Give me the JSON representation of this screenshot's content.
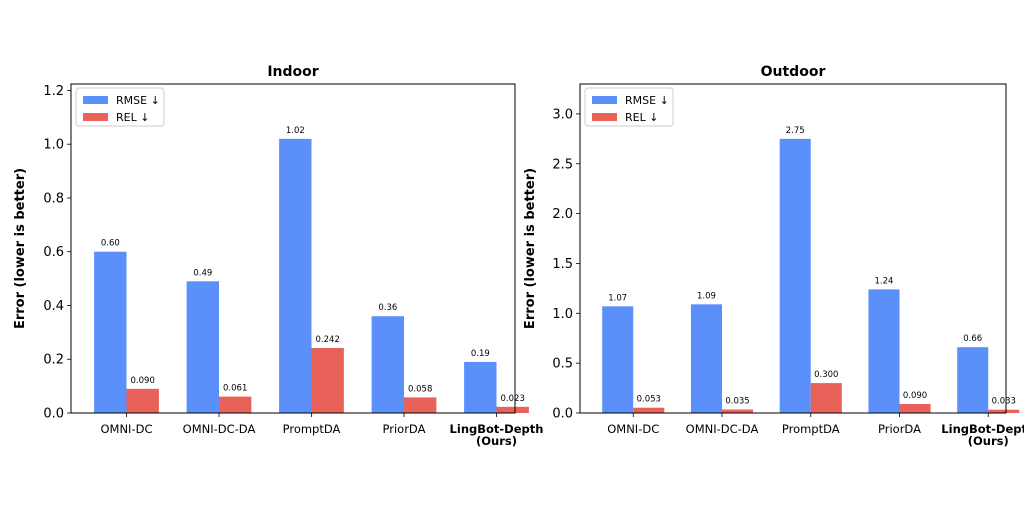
{
  "chart_data": [
    {
      "type": "bar",
      "title": "Indoor",
      "ylabel": "Error (lower is better)",
      "xlabel": "",
      "ylim": [
        0,
        1.224
      ],
      "yticks": [
        "0.0",
        "0.2",
        "0.4",
        "0.6",
        "0.8",
        "1.0",
        "1.2"
      ],
      "ytick_values": [
        0,
        0.2,
        0.4,
        0.6,
        0.8,
        1.0,
        1.2
      ],
      "categories": [
        "OMNI-DC",
        "OMNI-DC-DA",
        "PromptDA",
        "PriorDA",
        "LingBot-Depth\n(Ours)"
      ],
      "bold_categories": [
        false,
        false,
        false,
        false,
        true
      ],
      "legend_position": "upper-left",
      "series": [
        {
          "name": "RMSE ↓",
          "color": "#5b8ff9",
          "values": [
            0.6,
            0.49,
            1.02,
            0.36,
            0.19
          ],
          "labels": [
            "0.60",
            "0.49",
            "1.02",
            "0.36",
            "0.19"
          ]
        },
        {
          "name": "REL ↓",
          "color": "#e8625a",
          "values": [
            0.09,
            0.061,
            0.242,
            0.058,
            0.023
          ],
          "labels": [
            "0.090",
            "0.061",
            "0.242",
            "0.058",
            "0.023"
          ]
        }
      ]
    },
    {
      "type": "bar",
      "title": "Outdoor",
      "ylabel": "Error (lower is better)",
      "xlabel": "",
      "ylim": [
        0,
        3.3
      ],
      "yticks": [
        "0.0",
        "0.5",
        "1.0",
        "1.5",
        "2.0",
        "2.5",
        "3.0"
      ],
      "ytick_values": [
        0,
        0.5,
        1.0,
        1.5,
        2.0,
        2.5,
        3.0
      ],
      "categories": [
        "OMNI-DC",
        "OMNI-DC-DA",
        "PromptDA",
        "PriorDA",
        "LingBot-Depth\n(Ours)"
      ],
      "bold_categories": [
        false,
        false,
        false,
        false,
        true
      ],
      "legend_position": "upper-left",
      "series": [
        {
          "name": "RMSE ↓",
          "color": "#5b8ff9",
          "values": [
            1.07,
            1.09,
            2.75,
            1.24,
            0.66
          ],
          "labels": [
            "1.07",
            "1.09",
            "2.75",
            "1.24",
            "0.66"
          ]
        },
        {
          "name": "REL ↓",
          "color": "#e8625a",
          "values": [
            0.053,
            0.035,
            0.3,
            0.09,
            0.033
          ],
          "labels": [
            "0.053",
            "0.035",
            "0.300",
            "0.090",
            "0.033"
          ]
        }
      ]
    }
  ]
}
